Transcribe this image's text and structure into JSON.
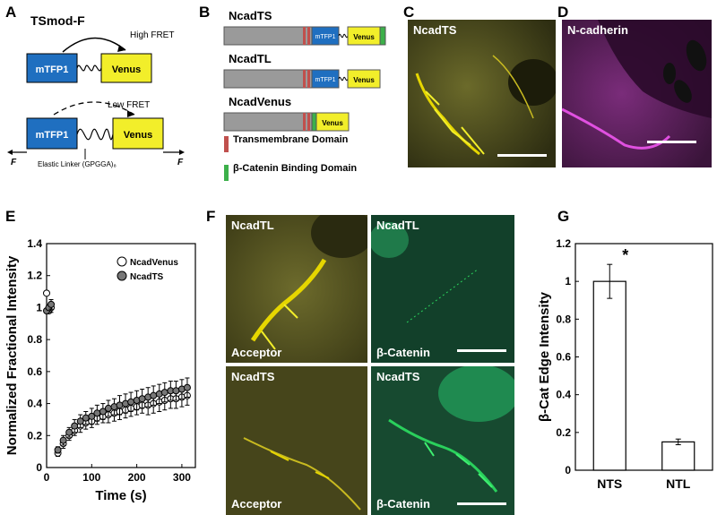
{
  "panels": {
    "A": "A",
    "B": "B",
    "C": "C",
    "D": "D",
    "E": "E",
    "F": "F",
    "G": "G"
  },
  "panelA": {
    "title": "TSmod-F",
    "high_fret": "High FRET",
    "low_fret": "Low FRET",
    "donor": "mTFP1",
    "acceptor": "Venus",
    "linker": "Elastic Linker (GPGGA)₈",
    "force": "F"
  },
  "panelB": {
    "constructs": [
      {
        "name": "NcadTS",
        "donor": "mTFP1",
        "acceptor": "Venus"
      },
      {
        "name": "NcadTL",
        "donor": "mTFP1",
        "acceptor": "Venus"
      },
      {
        "name": "NcadVenus",
        "acceptor": "Venus"
      }
    ],
    "legend": [
      {
        "label": "Transmembrane Domain",
        "color": "#c0504d"
      },
      {
        "label": "β-Catenin Binding Domain",
        "color": "#3cb04a"
      }
    ]
  },
  "panelC": {
    "label": "NcadTS"
  },
  "panelD": {
    "label": "N-cadherin"
  },
  "panelF": {
    "top_left": {
      "title": "NcadTL",
      "caption": "Acceptor"
    },
    "top_right": {
      "title": "NcadTL",
      "caption": "β-Catenin"
    },
    "bottom_left": {
      "title": "NcadTS",
      "caption": "Acceptor"
    },
    "bottom_right": {
      "title": "NcadTS",
      "caption": "β-Catenin"
    }
  },
  "chart_data": [
    {
      "id": "E",
      "type": "scatter",
      "xlabel": "Time (s)",
      "ylabel": "Normalized Fractional Intensity",
      "xlim": [
        0,
        330
      ],
      "ylim": [
        0,
        1.4
      ],
      "xticks": [
        0,
        100,
        200,
        300
      ],
      "yticks": [
        0,
        0.2,
        0.4,
        0.6,
        0.8,
        1,
        1.2,
        1.4
      ],
      "ytick_labels": [
        "0",
        "0.2",
        "0.4",
        "0.6",
        "0.8",
        "1",
        "1.2",
        "1.4"
      ],
      "series": [
        {
          "name": "NcadVenus",
          "marker": "open-circle",
          "x": [
            0,
            5,
            10,
            25,
            37,
            50,
            62,
            75,
            87,
            100,
            112,
            125,
            137,
            150,
            162,
            175,
            187,
            200,
            212,
            225,
            237,
            250,
            262,
            275,
            287,
            300,
            312
          ],
          "y": [
            1.09,
            0.98,
            1.0,
            0.09,
            0.15,
            0.2,
            0.23,
            0.26,
            0.28,
            0.29,
            0.31,
            0.32,
            0.33,
            0.34,
            0.35,
            0.36,
            0.37,
            0.38,
            0.39,
            0.39,
            0.4,
            0.41,
            0.42,
            0.43,
            0.43,
            0.44,
            0.45
          ],
          "err": [
            0,
            0,
            0.03,
            0.02,
            0.03,
            0.03,
            0.03,
            0.04,
            0.04,
            0.04,
            0.04,
            0.04,
            0.05,
            0.05,
            0.05,
            0.05,
            0.05,
            0.05,
            0.05,
            0.06,
            0.06,
            0.06,
            0.06,
            0.06,
            0.06,
            0.06,
            0.06
          ]
        },
        {
          "name": "NcadTS",
          "marker": "filled-circle",
          "x": [
            0,
            5,
            10,
            25,
            37,
            50,
            62,
            75,
            87,
            100,
            112,
            125,
            137,
            150,
            162,
            175,
            187,
            200,
            212,
            225,
            237,
            250,
            262,
            275,
            287,
            300,
            312
          ],
          "y": [
            0.98,
            1.0,
            1.02,
            0.11,
            0.17,
            0.22,
            0.26,
            0.29,
            0.31,
            0.32,
            0.34,
            0.35,
            0.37,
            0.38,
            0.39,
            0.4,
            0.41,
            0.42,
            0.43,
            0.44,
            0.45,
            0.46,
            0.47,
            0.48,
            0.48,
            0.49,
            0.5
          ],
          "err": [
            0,
            0,
            0.03,
            0.02,
            0.03,
            0.03,
            0.04,
            0.04,
            0.04,
            0.05,
            0.05,
            0.05,
            0.05,
            0.05,
            0.06,
            0.06,
            0.06,
            0.06,
            0.06,
            0.06,
            0.06,
            0.06,
            0.06,
            0.06,
            0.06,
            0.06,
            0.06
          ]
        }
      ],
      "legend_position": "top-right"
    },
    {
      "id": "G",
      "type": "bar",
      "ylabel": "β-Cat Edge Intensity",
      "categories": [
        "NTS",
        "NTL"
      ],
      "values": [
        1.0,
        0.15
      ],
      "errors": [
        0.09,
        0.015
      ],
      "ylim": [
        0,
        1.2
      ],
      "yticks": [
        0,
        0.2,
        0.4,
        0.6,
        0.8,
        1,
        1.2
      ],
      "ytick_labels": [
        "0",
        "0.2",
        "0.4",
        "0.6",
        "0.8",
        "1",
        "1.2"
      ],
      "annotation": "*"
    }
  ],
  "colors": {
    "mTFP1": "#1f6fc0",
    "Venus": "#f2ee2a",
    "gray": "#9a9a9a",
    "transmembrane": "#c0504d",
    "betacat_binding": "#3cb04a",
    "yellow_channel": "#e6d600",
    "magenta_channel": "#c33cc3",
    "green_channel": "#2ad05c"
  }
}
